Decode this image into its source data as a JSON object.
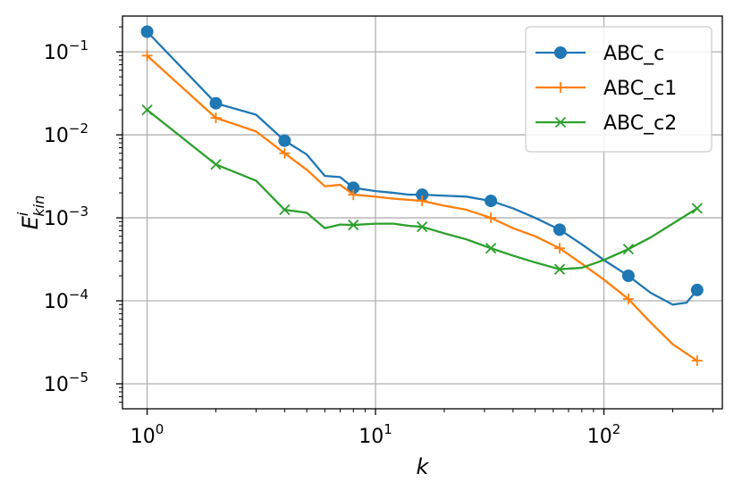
{
  "chart_data": {
    "type": "line",
    "xscale": "log",
    "yscale": "log",
    "xlim": [
      0.78,
      330
    ],
    "ylim": [
      5e-06,
      0.27
    ],
    "grid": true,
    "legend_position": "top-right",
    "xlabel": "k",
    "ylabel": {
      "base": "E",
      "sup": "i",
      "sub": "kin"
    },
    "xticks": [
      {
        "value": 1,
        "base": "10",
        "exp": "0"
      },
      {
        "value": 10,
        "base": "10",
        "exp": "1"
      },
      {
        "value": 100,
        "base": "10",
        "exp": "2"
      }
    ],
    "yticks": [
      {
        "value": 1e-05,
        "base": "10",
        "exp": "−5"
      },
      {
        "value": 0.0001,
        "base": "10",
        "exp": "−4"
      },
      {
        "value": 0.001,
        "base": "10",
        "exp": "−3"
      },
      {
        "value": 0.01,
        "base": "10",
        "exp": "−2"
      },
      {
        "value": 0.1,
        "base": "10",
        "exp": "−1"
      }
    ],
    "series": [
      {
        "name": "ABC_c",
        "color": "#1f77b4",
        "marker": "circle",
        "x": [
          1,
          2,
          3,
          4,
          5,
          6,
          7,
          8,
          10,
          12,
          14,
          16,
          20,
          25,
          32,
          40,
          50,
          64,
          80,
          100,
          128,
          160,
          200,
          230,
          256
        ],
        "y": [
          0.175,
          0.024,
          0.0175,
          0.0085,
          0.0058,
          0.0032,
          0.0031,
          0.0023,
          0.0021,
          0.002,
          0.0019,
          0.0019,
          0.00185,
          0.0018,
          0.0016,
          0.0013,
          0.001,
          0.00072,
          0.00048,
          0.00031,
          0.0002,
          0.000125,
          9e-05,
          9.5e-05,
          0.000135
        ],
        "marker_x": [
          1,
          2,
          4,
          8,
          16,
          32,
          64,
          128,
          256
        ],
        "marker_y": [
          0.175,
          0.024,
          0.0085,
          0.0023,
          0.0019,
          0.0016,
          0.00072,
          0.0002,
          0.000135
        ]
      },
      {
        "name": "ABC_c1",
        "color": "#ff7f0e",
        "marker": "plus",
        "x": [
          1,
          2,
          3,
          4,
          5,
          6,
          7,
          8,
          10,
          12,
          16,
          20,
          25,
          32,
          40,
          50,
          64,
          80,
          100,
          128,
          160,
          200,
          256
        ],
        "y": [
          0.09,
          0.016,
          0.011,
          0.006,
          0.0038,
          0.0024,
          0.0025,
          0.0019,
          0.0018,
          0.0017,
          0.0016,
          0.0014,
          0.00125,
          0.001,
          0.00075,
          0.0006,
          0.00043,
          0.00028,
          0.00018,
          0.000105,
          5.5e-05,
          3e-05,
          1.9e-05
        ],
        "marker_x": [
          1,
          2,
          4,
          8,
          16,
          32,
          64,
          128,
          256
        ],
        "marker_y": [
          0.09,
          0.016,
          0.006,
          0.0019,
          0.0016,
          0.001,
          0.00043,
          0.000105,
          1.9e-05
        ]
      },
      {
        "name": "ABC_c2",
        "color": "#2ca02c",
        "marker": "x",
        "x": [
          1,
          2,
          3,
          4,
          5,
          6,
          7,
          8,
          10,
          12,
          14,
          16,
          20,
          25,
          32,
          40,
          50,
          64,
          80,
          100,
          128,
          160,
          200,
          256
        ],
        "y": [
          0.02,
          0.0044,
          0.0028,
          0.00125,
          0.00115,
          0.00075,
          0.00083,
          0.00082,
          0.00085,
          0.00085,
          0.0008,
          0.00078,
          0.00065,
          0.00055,
          0.00043,
          0.00035,
          0.00029,
          0.00024,
          0.00025,
          0.00031,
          0.00042,
          0.00058,
          0.00085,
          0.0013
        ],
        "marker_x": [
          1,
          2,
          4,
          8,
          16,
          32,
          64,
          128,
          256
        ],
        "marker_y": [
          0.02,
          0.0044,
          0.00125,
          0.00082,
          0.00078,
          0.00043,
          0.00024,
          0.00042,
          0.0013
        ]
      }
    ]
  }
}
